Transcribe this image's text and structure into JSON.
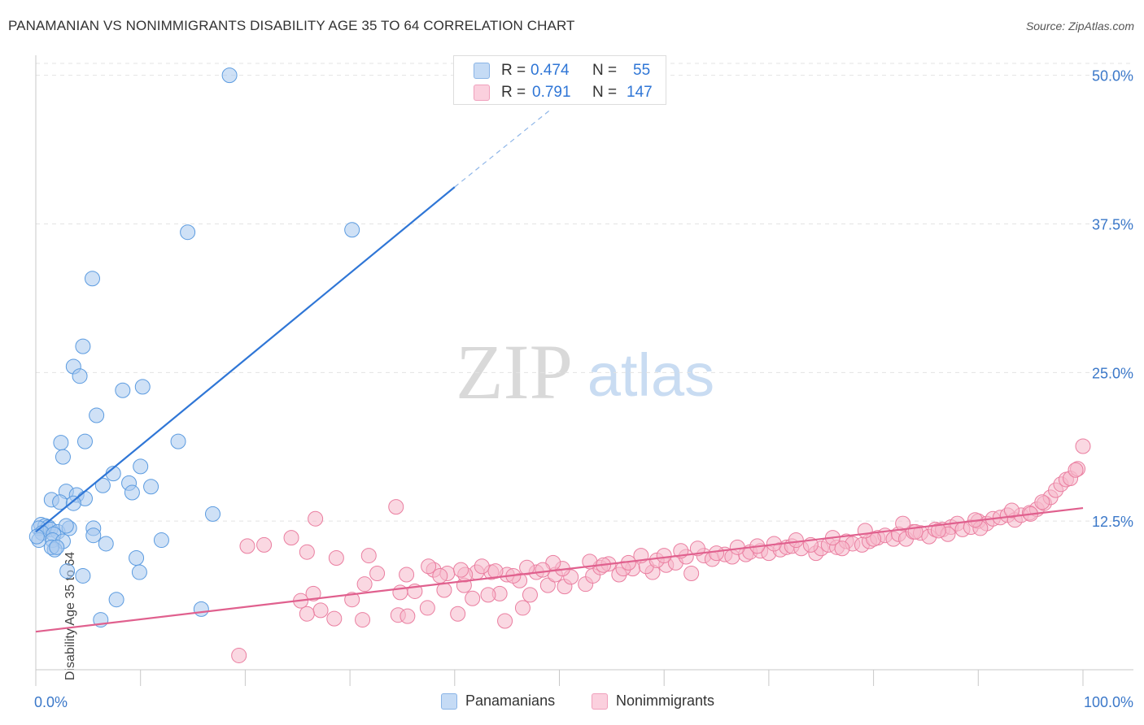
{
  "header": {
    "title": "PANAMANIAN VS NONIMMIGRANTS DISABILITY AGE 35 TO 64 CORRELATION CHART",
    "source": "Source: ZipAtlas.com"
  },
  "watermark": {
    "zip": "ZIP",
    "atlas": "atlas"
  },
  "legend_top": {
    "rows": [
      {
        "r_label": "R =",
        "r_value": "0.474",
        "n_label": "N =",
        "n_value": "55",
        "color": "#a8c8ef"
      },
      {
        "r_label": "R =",
        "r_value": "0.791",
        "n_label": "N =",
        "n_value": "147",
        "color": "#f5b8cb"
      }
    ]
  },
  "legend_bottom": {
    "items": [
      {
        "label": "Panamanians",
        "color": "#a8c8ef"
      },
      {
        "label": "Nonimmigrants",
        "color": "#f5b8cb"
      }
    ]
  },
  "chart_data": {
    "type": "scatter",
    "title": "PANAMANIAN VS NONIMMIGRANTS DISABILITY AGE 35 TO 64 CORRELATION CHART",
    "xlabel": "",
    "ylabel": "Disability Age 35 to 64",
    "xlim": [
      0,
      100
    ],
    "ylim": [
      0,
      51
    ],
    "x_tick_labels": [
      "0.0%",
      "100.0%"
    ],
    "y_ticks": [
      12.5,
      25.0,
      37.5,
      50.0
    ],
    "y_tick_labels": [
      "12.5%",
      "25.0%",
      "37.5%",
      "50.0%"
    ],
    "grid": true,
    "colors": {
      "panamanians": "#5b9be0",
      "nonimmigrants": "#ea7ea0",
      "blue_line": "#2f76d6",
      "pink_line": "#e0608e"
    },
    "series": [
      {
        "name": "Panamanians",
        "trendline": {
          "x0": 0,
          "y0": 11.6,
          "x1": 40,
          "y1": 40.6,
          "dashed_to_x": 49,
          "dashed_to_y": 47.0
        },
        "points": [
          [
            18.5,
            50.0
          ],
          [
            14.5,
            36.8
          ],
          [
            30.2,
            37.0
          ],
          [
            5.4,
            32.9
          ],
          [
            4.5,
            27.2
          ],
          [
            3.6,
            25.5
          ],
          [
            4.2,
            24.7
          ],
          [
            10.2,
            23.8
          ],
          [
            8.3,
            23.5
          ],
          [
            5.8,
            21.4
          ],
          [
            2.4,
            19.1
          ],
          [
            4.7,
            19.2
          ],
          [
            13.6,
            19.2
          ],
          [
            2.6,
            17.9
          ],
          [
            10.0,
            17.1
          ],
          [
            7.4,
            16.5
          ],
          [
            8.9,
            15.7
          ],
          [
            6.4,
            15.5
          ],
          [
            11.0,
            15.4
          ],
          [
            2.9,
            15.0
          ],
          [
            3.9,
            14.7
          ],
          [
            9.2,
            14.9
          ],
          [
            1.5,
            14.3
          ],
          [
            4.7,
            14.4
          ],
          [
            2.3,
            14.1
          ],
          [
            3.6,
            14.0
          ],
          [
            16.9,
            13.1
          ],
          [
            0.5,
            12.2
          ],
          [
            0.9,
            12.1
          ],
          [
            1.2,
            12.0
          ],
          [
            0.3,
            11.9
          ],
          [
            1.4,
            11.8
          ],
          [
            2.1,
            11.6
          ],
          [
            5.5,
            11.9
          ],
          [
            3.2,
            11.9
          ],
          [
            2.9,
            12.1
          ],
          [
            0.6,
            11.5
          ],
          [
            1.7,
            11.4
          ],
          [
            5.5,
            11.3
          ],
          [
            0.3,
            10.9
          ],
          [
            1.6,
            10.9
          ],
          [
            2.6,
            10.8
          ],
          [
            12.0,
            10.9
          ],
          [
            6.7,
            10.6
          ],
          [
            1.8,
            10.1
          ],
          [
            1.5,
            10.3
          ],
          [
            9.6,
            9.4
          ],
          [
            2.0,
            10.3
          ],
          [
            3.0,
            8.3
          ],
          [
            9.9,
            8.2
          ],
          [
            4.5,
            7.9
          ],
          [
            7.7,
            5.9
          ],
          [
            15.8,
            5.1
          ],
          [
            6.2,
            4.2
          ],
          [
            0.1,
            11.2
          ]
        ]
      },
      {
        "name": "Nonimmigrants",
        "trendline": {
          "x0": 0,
          "y0": 3.2,
          "x1": 100,
          "y1": 13.6
        },
        "points": [
          [
            19.4,
            1.2
          ],
          [
            28.5,
            4.3
          ],
          [
            27.2,
            5.0
          ],
          [
            31.2,
            4.2
          ],
          [
            34.6,
            4.6
          ],
          [
            35.5,
            4.5
          ],
          [
            25.9,
            4.7
          ],
          [
            37.4,
            5.2
          ],
          [
            40.3,
            4.7
          ],
          [
            44.8,
            4.1
          ],
          [
            46.5,
            5.2
          ],
          [
            25.3,
            5.8
          ],
          [
            30.2,
            5.9
          ],
          [
            34.8,
            6.5
          ],
          [
            26.5,
            6.4
          ],
          [
            41.7,
            6.0
          ],
          [
            47.2,
            6.3
          ],
          [
            44.3,
            6.4
          ],
          [
            43.2,
            6.3
          ],
          [
            36.2,
            6.6
          ],
          [
            39.0,
            6.7
          ],
          [
            40.9,
            7.1
          ],
          [
            31.4,
            7.2
          ],
          [
            48.9,
            7.1
          ],
          [
            50.5,
            7.0
          ],
          [
            52.5,
            7.2
          ],
          [
            46.2,
            7.5
          ],
          [
            51.1,
            7.8
          ],
          [
            53.2,
            7.9
          ],
          [
            45.0,
            8.0
          ],
          [
            49.6,
            8.0
          ],
          [
            42.1,
            8.2
          ],
          [
            43.5,
            8.2
          ],
          [
            47.8,
            8.2
          ],
          [
            38.0,
            8.4
          ],
          [
            39.3,
            8.1
          ],
          [
            50.3,
            8.5
          ],
          [
            55.7,
            8.0
          ],
          [
            57.0,
            8.5
          ],
          [
            53.9,
            8.6
          ],
          [
            56.1,
            8.5
          ],
          [
            58.9,
            8.2
          ],
          [
            54.7,
            8.9
          ],
          [
            62.6,
            8.1
          ],
          [
            58.3,
            8.7
          ],
          [
            60.2,
            8.8
          ],
          [
            61.1,
            9.0
          ],
          [
            62.1,
            9.5
          ],
          [
            59.3,
            9.2
          ],
          [
            63.8,
            9.6
          ],
          [
            64.6,
            9.3
          ],
          [
            65.8,
            9.7
          ],
          [
            66.5,
            9.5
          ],
          [
            67.8,
            9.7
          ],
          [
            68.2,
            9.9
          ],
          [
            69.2,
            10.0
          ],
          [
            70.0,
            9.8
          ],
          [
            71.1,
            10.1
          ],
          [
            71.7,
            10.3
          ],
          [
            72.2,
            10.4
          ],
          [
            73.1,
            10.2
          ],
          [
            74.5,
            9.8
          ],
          [
            75.0,
            10.2
          ],
          [
            75.7,
            10.5
          ],
          [
            76.5,
            10.3
          ],
          [
            77.4,
            10.8
          ],
          [
            78.0,
            10.6
          ],
          [
            78.9,
            10.5
          ],
          [
            79.6,
            10.8
          ],
          [
            80.4,
            11.1
          ],
          [
            81.1,
            11.3
          ],
          [
            81.9,
            11.0
          ],
          [
            82.4,
            11.4
          ],
          [
            83.1,
            11.0
          ],
          [
            83.8,
            11.6
          ],
          [
            84.5,
            11.5
          ],
          [
            85.3,
            11.2
          ],
          [
            85.9,
            11.8
          ],
          [
            86.6,
            11.8
          ],
          [
            87.4,
            12.0
          ],
          [
            88.0,
            12.3
          ],
          [
            88.5,
            11.8
          ],
          [
            89.3,
            12.0
          ],
          [
            90.0,
            12.5
          ],
          [
            90.8,
            12.3
          ],
          [
            91.4,
            12.7
          ],
          [
            92.1,
            12.8
          ],
          [
            92.8,
            13.0
          ],
          [
            93.5,
            12.6
          ],
          [
            94.1,
            13.0
          ],
          [
            94.9,
            13.2
          ],
          [
            95.6,
            13.5
          ],
          [
            96.3,
            14.0
          ],
          [
            96.9,
            14.5
          ],
          [
            97.4,
            15.1
          ],
          [
            97.9,
            15.6
          ],
          [
            98.4,
            16.0
          ],
          [
            98.8,
            16.1
          ],
          [
            99.5,
            16.9
          ],
          [
            100.0,
            18.8
          ],
          [
            99.3,
            16.8
          ],
          [
            96.1,
            14.1
          ],
          [
            95.0,
            13.1
          ],
          [
            90.2,
            11.9
          ],
          [
            87.1,
            11.4
          ],
          [
            84.0,
            11.6
          ],
          [
            80.0,
            11.0
          ],
          [
            77.0,
            10.2
          ],
          [
            74.0,
            10.5
          ],
          [
            70.5,
            10.6
          ],
          [
            67.0,
            10.3
          ],
          [
            63.2,
            10.2
          ],
          [
            60.0,
            9.6
          ],
          [
            56.6,
            9.0
          ],
          [
            52.9,
            9.1
          ],
          [
            49.4,
            9.0
          ],
          [
            46.9,
            8.6
          ],
          [
            43.9,
            8.3
          ],
          [
            41.0,
            8.0
          ],
          [
            38.6,
            7.9
          ],
          [
            35.4,
            8.0
          ],
          [
            32.6,
            8.1
          ],
          [
            28.7,
            9.4
          ],
          [
            25.9,
            9.9
          ],
          [
            24.4,
            11.1
          ],
          [
            21.8,
            10.5
          ],
          [
            37.5,
            8.7
          ],
          [
            42.6,
            8.7
          ],
          [
            48.4,
            8.4
          ],
          [
            54.2,
            8.8
          ],
          [
            57.8,
            9.6
          ],
          [
            61.6,
            10.0
          ],
          [
            65.0,
            9.8
          ],
          [
            68.9,
            10.4
          ],
          [
            72.6,
            10.9
          ],
          [
            76.1,
            11.1
          ],
          [
            79.2,
            11.7
          ],
          [
            82.8,
            12.3
          ],
          [
            86.2,
            11.7
          ],
          [
            89.7,
            12.6
          ],
          [
            93.2,
            13.4
          ],
          [
            34.4,
            13.7
          ],
          [
            26.7,
            12.7
          ],
          [
            20.2,
            10.4
          ],
          [
            31.8,
            9.6
          ],
          [
            40.6,
            8.4
          ],
          [
            45.6,
            7.9
          ]
        ]
      }
    ]
  }
}
